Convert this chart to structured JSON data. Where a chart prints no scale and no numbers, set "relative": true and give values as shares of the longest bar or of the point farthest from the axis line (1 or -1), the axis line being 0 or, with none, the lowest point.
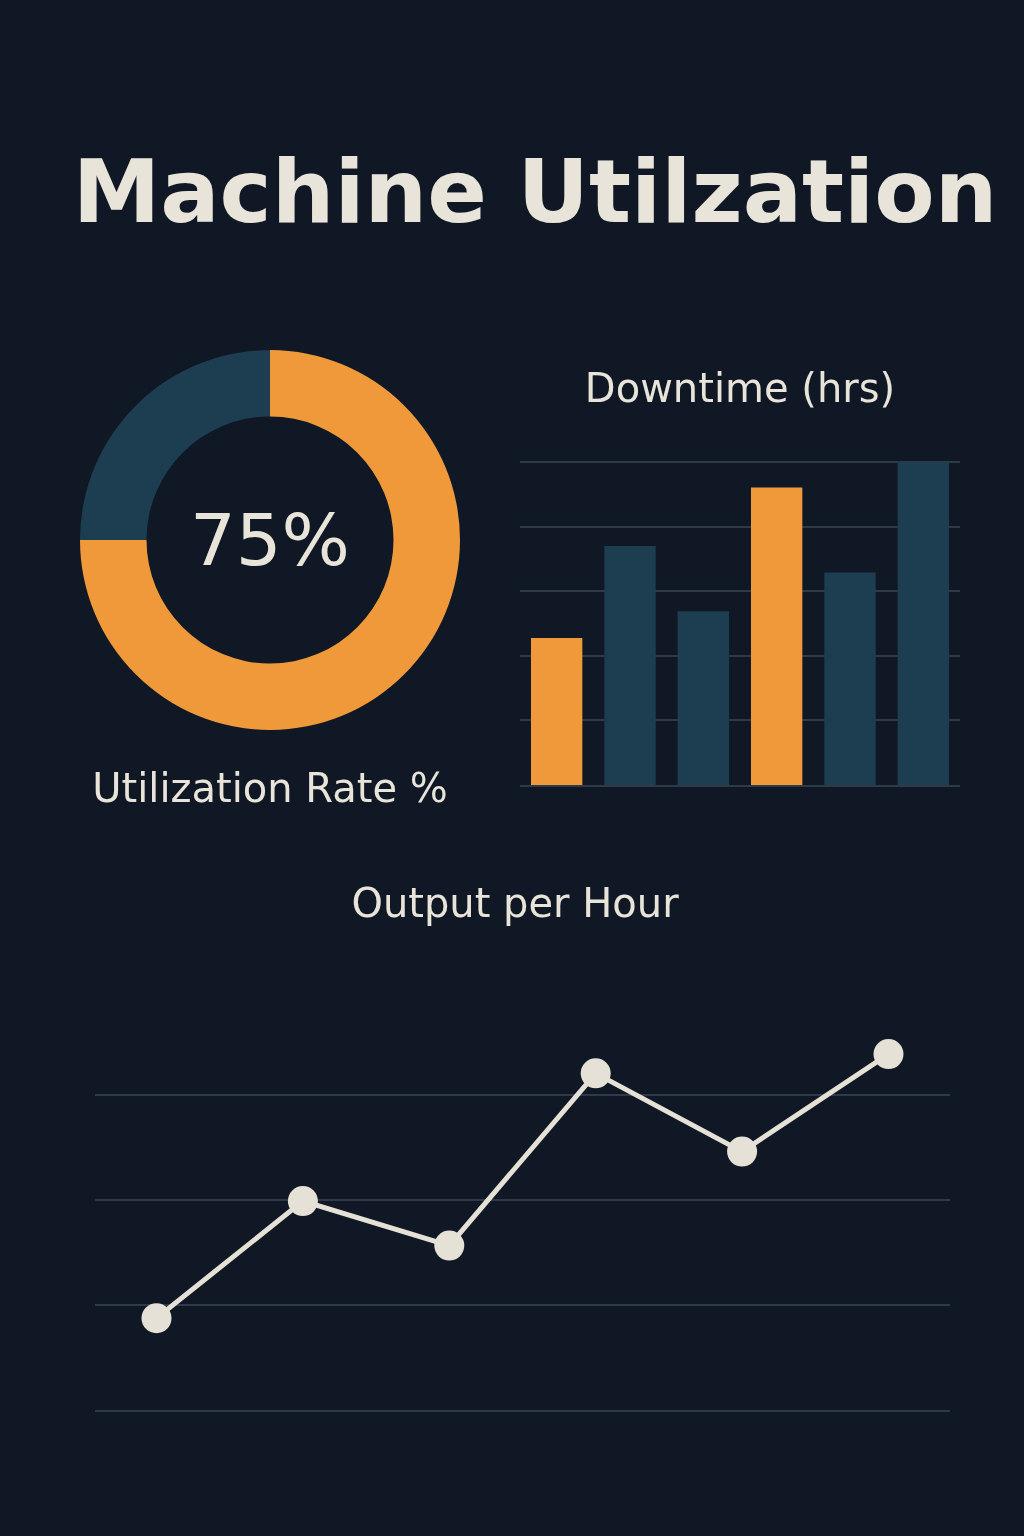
{
  "chart_data": [
    {
      "type": "other",
      "title": "Machine Utilzation"
    },
    {
      "type": "donut",
      "title": "Utilization Rate %",
      "categories": [
        null,
        null
      ],
      "values": [
        75,
        25
      ],
      "colors": [
        "#f0993a",
        "#1d3d50"
      ],
      "annotations": [
        "75%"
      ]
    },
    {
      "type": "bar",
      "title": "Downtime (hrs)",
      "relative": true,
      "grid": "y",
      "categories": [
        null,
        null,
        null,
        null,
        null,
        null
      ],
      "values": [
        0.455,
        0.74,
        0.538,
        0.921,
        0.658,
        1
      ],
      "colors": [
        "#f0993a",
        "#1d3d50",
        "#1d3d50",
        "#f0993a",
        "#1d3d50",
        "#1d3d50"
      ]
    },
    {
      "type": "line",
      "title": "Output per Hour",
      "relative": true,
      "grid": "y",
      "marker": "circle",
      "categories": [
        null,
        null,
        null,
        null,
        null,
        null
      ],
      "series": [
        {
          "color": "#e6e1d6",
          "values": [
            0.258,
            0.587,
            0.462,
            0.946,
            0.726,
            1
          ]
        }
      ]
    }
  ]
}
